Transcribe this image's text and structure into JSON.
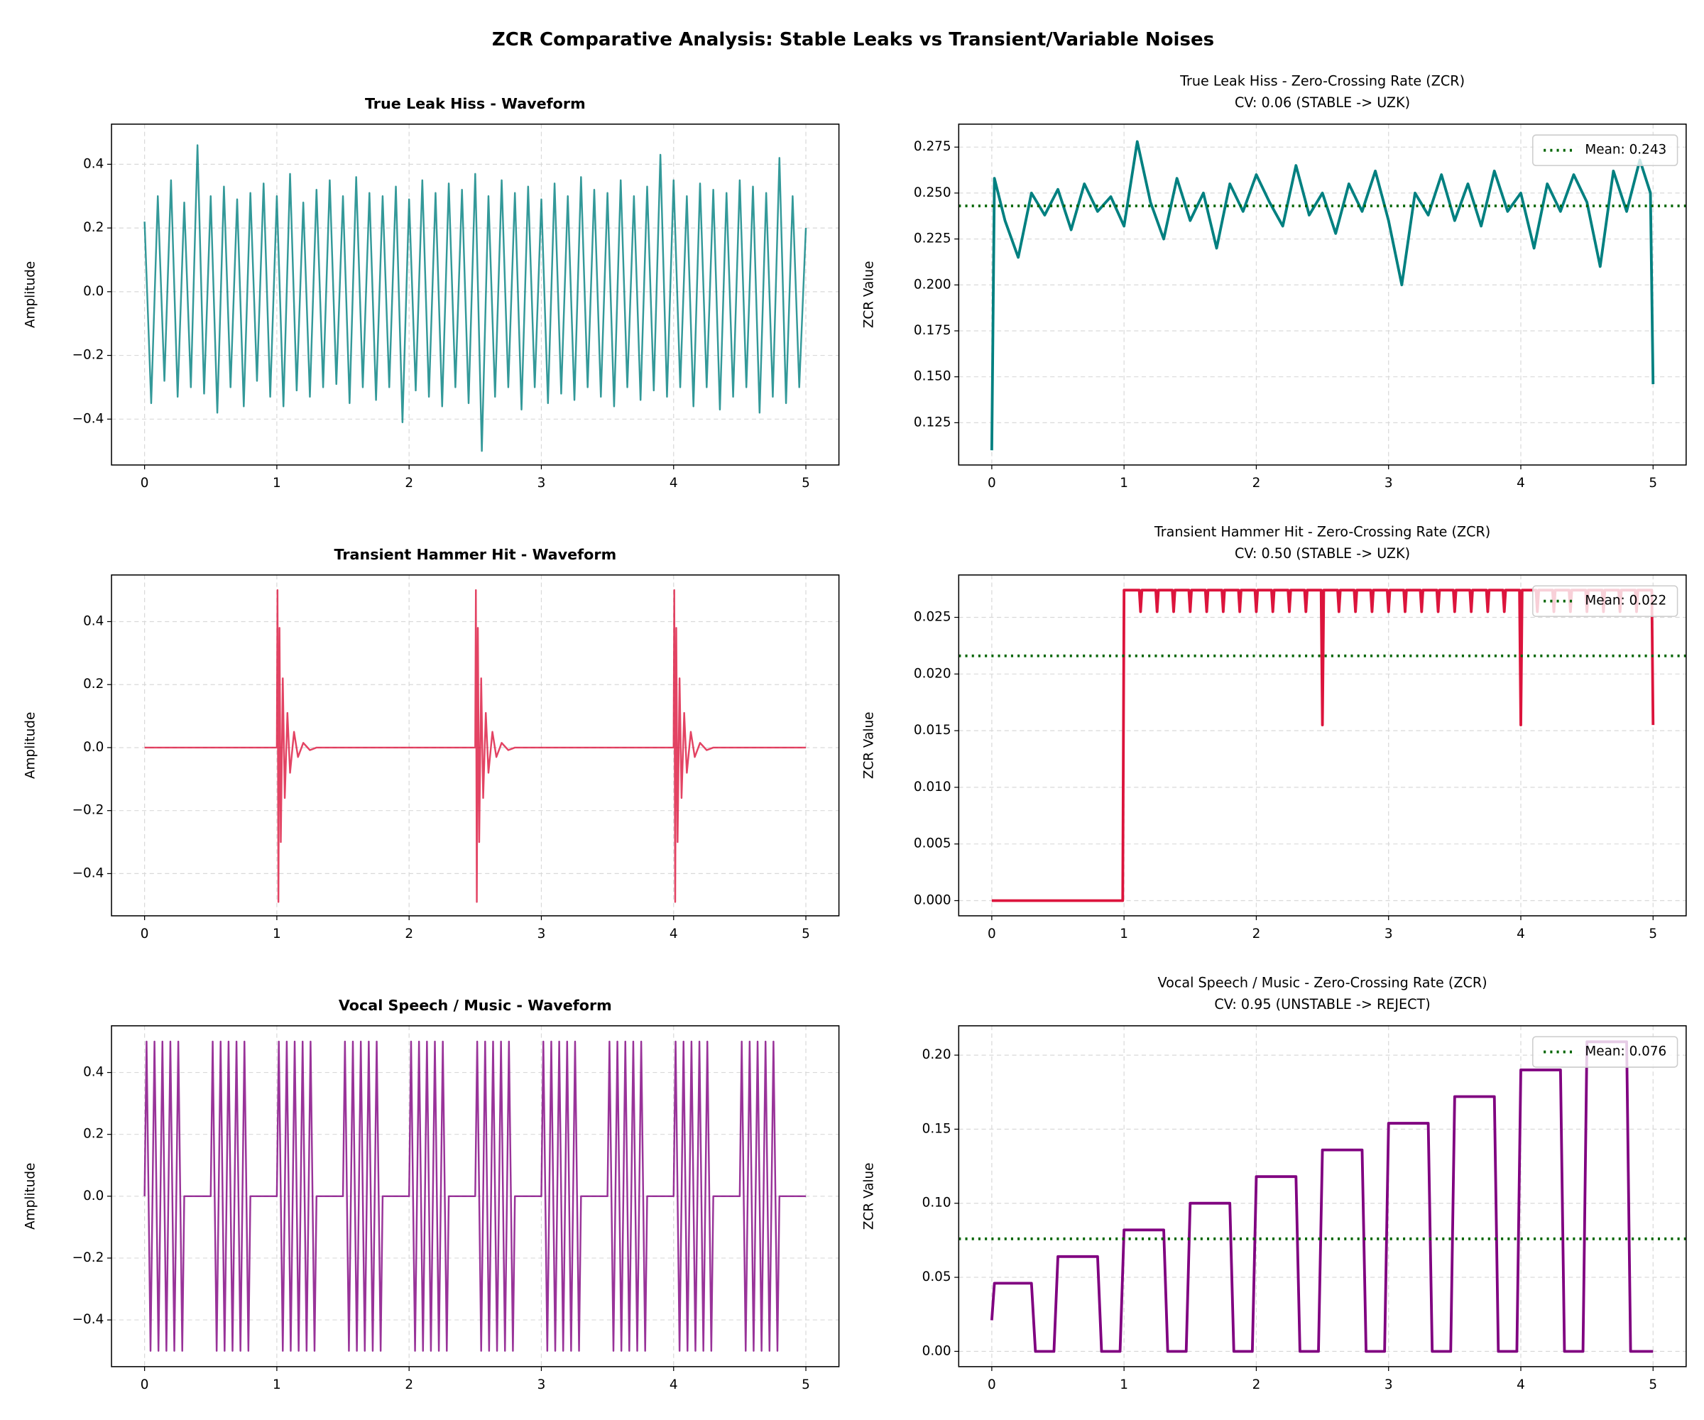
{
  "title": "ZCR Comparative Analysis: Stable Leaks vs Transient/Variable Noises",
  "chart_data": [
    {
      "type": "line",
      "title": "True Leak Hiss - Waveform",
      "ylabel": "Amplitude",
      "color": "#008080",
      "x": [
        0,
        0.05,
        0.1,
        0.15,
        0.2,
        0.25,
        0.3,
        0.35,
        0.4,
        0.45,
        0.5,
        0.55,
        0.6,
        0.65,
        0.7,
        0.75,
        0.8,
        0.85,
        0.9,
        0.95,
        1,
        1.05,
        1.1,
        1.15,
        1.2,
        1.25,
        1.3,
        1.35,
        1.4,
        1.45,
        1.5,
        1.55,
        1.6,
        1.65,
        1.7,
        1.75,
        1.8,
        1.85,
        1.9,
        1.95,
        2,
        2.05,
        2.1,
        2.15,
        2.2,
        2.25,
        2.3,
        2.35,
        2.4,
        2.45,
        2.5,
        2.55,
        2.6,
        2.65,
        2.7,
        2.75,
        2.8,
        2.85,
        2.9,
        2.95,
        3,
        3.05,
        3.1,
        3.15,
        3.2,
        3.25,
        3.3,
        3.35,
        3.4,
        3.45,
        3.5,
        3.55,
        3.6,
        3.65,
        3.7,
        3.75,
        3.8,
        3.85,
        3.9,
        3.95,
        4,
        4.05,
        4.1,
        4.15,
        4.2,
        4.25,
        4.3,
        4.35,
        4.4,
        4.45,
        4.5,
        4.55,
        4.6,
        4.65,
        4.7,
        4.75,
        4.8,
        4.85,
        4.9,
        4.95,
        5
      ],
      "values": [
        0.22,
        -0.35,
        0.3,
        -0.28,
        0.35,
        -0.33,
        0.28,
        -0.3,
        0.46,
        -0.32,
        0.3,
        -0.38,
        0.33,
        -0.3,
        0.29,
        -0.36,
        0.31,
        -0.28,
        0.34,
        -0.33,
        0.3,
        -0.36,
        0.37,
        -0.31,
        0.28,
        -0.33,
        0.32,
        -0.3,
        0.35,
        -0.29,
        0.3,
        -0.35,
        0.36,
        -0.3,
        0.31,
        -0.34,
        0.3,
        -0.3,
        0.33,
        -0.41,
        0.29,
        -0.31,
        0.35,
        -0.33,
        0.31,
        -0.36,
        0.34,
        -0.3,
        0.32,
        -0.35,
        0.37,
        -0.5,
        0.3,
        -0.33,
        0.35,
        -0.3,
        0.31,
        -0.37,
        0.33,
        -0.3,
        0.29,
        -0.35,
        0.34,
        -0.32,
        0.3,
        -0.34,
        0.36,
        -0.3,
        0.32,
        -0.33,
        0.31,
        -0.36,
        0.35,
        -0.3,
        0.3,
        -0.34,
        0.33,
        -0.31,
        0.43,
        -0.33,
        0.35,
        -0.3,
        0.3,
        -0.36,
        0.34,
        -0.3,
        0.32,
        -0.37,
        0.31,
        -0.33,
        0.35,
        -0.3,
        0.33,
        -0.38,
        0.31,
        -0.33,
        0.42,
        -0.35,
        0.3,
        -0.3,
        0.2
      ],
      "xlim": [
        -0.25,
        5.25
      ],
      "xticks": [
        0,
        1,
        2,
        3,
        4,
        5
      ],
      "ylim": [
        -0.544,
        0.526
      ],
      "yticks": [
        {
          "value": -0.4,
          "label": "−0.4"
        },
        {
          "value": -0.2,
          "label": "−0.2"
        },
        {
          "value": 0,
          "label": "0.0"
        },
        0.2,
        0.4
      ],
      "grid": true
    },
    {
      "type": "line",
      "title": "True Leak Hiss - Zero-Crossing Rate (ZCR)",
      "subtitle": "CV: 0.06 (STABLE -> UZK)",
      "ylabel": "ZCR Value",
      "color": "#008080",
      "x": [
        0,
        0.02,
        0.1,
        0.2,
        0.3,
        0.4,
        0.5,
        0.6,
        0.7,
        0.8,
        0.9,
        1,
        1.1,
        1.2,
        1.3,
        1.4,
        1.5,
        1.6,
        1.7,
        1.8,
        1.9,
        2,
        2.1,
        2.2,
        2.3,
        2.4,
        2.5,
        2.6,
        2.7,
        2.8,
        2.9,
        3,
        3.1,
        3.2,
        3.3,
        3.4,
        3.5,
        3.6,
        3.7,
        3.8,
        3.9,
        4,
        4.1,
        4.2,
        4.3,
        4.4,
        4.5,
        4.6,
        4.7,
        4.8,
        4.9,
        4.98,
        5
      ],
      "values": [
        0.11,
        0.258,
        0.235,
        0.215,
        0.25,
        0.238,
        0.252,
        0.23,
        0.255,
        0.24,
        0.248,
        0.232,
        0.278,
        0.245,
        0.225,
        0.258,
        0.235,
        0.25,
        0.22,
        0.255,
        0.24,
        0.26,
        0.245,
        0.232,
        0.265,
        0.238,
        0.25,
        0.228,
        0.255,
        0.24,
        0.262,
        0.235,
        0.2,
        0.25,
        0.238,
        0.26,
        0.235,
        0.255,
        0.232,
        0.262,
        0.24,
        0.25,
        0.22,
        0.255,
        0.24,
        0.26,
        0.245,
        0.21,
        0.262,
        0.24,
        0.268,
        0.25,
        0.146
      ],
      "xlim": [
        -0.25,
        5.25
      ],
      "xticks": [
        0,
        1,
        2,
        3,
        4,
        5
      ],
      "ylim": [
        0.102,
        0.2875
      ],
      "yticks": [
        0.125,
        {
          "value": 0.15,
          "label": "0.150"
        },
        0.175,
        {
          "value": 0.2,
          "label": "0.200"
        },
        0.225,
        {
          "value": 0.25,
          "label": "0.250"
        },
        0.275
      ],
      "grid": true,
      "mean_line": {
        "value": 0.243,
        "label": "Mean: 0.243",
        "color": "#006400"
      },
      "legend": "upper right"
    },
    {
      "type": "line",
      "title": "Transient Hammer Hit - Waveform",
      "ylabel": "Amplitude",
      "color": "#dc143c",
      "x": [
        0,
        1,
        1.005,
        1.012,
        1.02,
        1.03,
        1.045,
        1.06,
        1.08,
        1.1,
        1.13,
        1.16,
        1.2,
        1.25,
        1.3,
        2.5,
        2.505,
        2.512,
        2.52,
        2.53,
        2.545,
        2.56,
        2.58,
        2.6,
        2.63,
        2.66,
        2.7,
        2.75,
        2.8,
        4,
        4.005,
        4.012,
        4.02,
        4.03,
        4.045,
        4.06,
        4.08,
        4.1,
        4.13,
        4.16,
        4.2,
        4.25,
        4.3,
        5
      ],
      "values": [
        0,
        0,
        0.5,
        -0.49,
        0.38,
        -0.3,
        0.22,
        -0.16,
        0.11,
        -0.08,
        0.05,
        -0.03,
        0.015,
        -0.008,
        0,
        0,
        0.5,
        -0.49,
        0.38,
        -0.3,
        0.22,
        -0.16,
        0.11,
        -0.08,
        0.05,
        -0.03,
        0.015,
        -0.008,
        0,
        0,
        0.5,
        -0.49,
        0.38,
        -0.3,
        0.22,
        -0.16,
        0.11,
        -0.08,
        0.05,
        -0.03,
        0.015,
        -0.008,
        0,
        0
      ],
      "xlim": [
        -0.25,
        5.25
      ],
      "xticks": [
        0,
        1,
        2,
        3,
        4,
        5
      ],
      "ylim": [
        -0.534,
        0.548
      ],
      "yticks": [
        {
          "value": -0.4,
          "label": "−0.4"
        },
        {
          "value": -0.2,
          "label": "−0.2"
        },
        {
          "value": 0,
          "label": "0.0"
        },
        0.2,
        0.4
      ],
      "grid": true
    },
    {
      "type": "line",
      "title": "Transient Hammer Hit - Zero-Crossing Rate (ZCR)",
      "subtitle": "CV: 0.50 (STABLE -> UZK)",
      "ylabel": "ZCR Value",
      "color": "#dc143c",
      "x": [
        0,
        0.99,
        1,
        1.115,
        1.125,
        1.135,
        1.24,
        1.25,
        1.26,
        1.365,
        1.375,
        1.385,
        1.49,
        1.5,
        1.51,
        1.615,
        1.625,
        1.635,
        1.74,
        1.75,
        1.76,
        1.865,
        1.875,
        1.885,
        1.99,
        2,
        2.01,
        2.115,
        2.125,
        2.135,
        2.24,
        2.25,
        2.26,
        2.365,
        2.375,
        2.385,
        2.49,
        2.5,
        2.51,
        2.615,
        2.625,
        2.635,
        2.74,
        2.75,
        2.76,
        2.865,
        2.875,
        2.885,
        2.99,
        3,
        3.01,
        3.115,
        3.125,
        3.135,
        3.24,
        3.25,
        3.26,
        3.365,
        3.375,
        3.385,
        3.49,
        3.5,
        3.51,
        3.615,
        3.625,
        3.635,
        3.74,
        3.75,
        3.76,
        3.865,
        3.875,
        3.885,
        3.99,
        4,
        4.01,
        4.115,
        4.125,
        4.135,
        4.24,
        4.25,
        4.26,
        4.365,
        4.375,
        4.385,
        4.49,
        4.5,
        4.51,
        4.615,
        4.625,
        4.635,
        4.74,
        4.75,
        4.76,
        4.865,
        4.875,
        4.885,
        4.99,
        5
      ],
      "values": [
        0,
        0,
        0.0274,
        0.0274,
        0.0255,
        0.0274,
        0.0274,
        0.0255,
        0.0274,
        0.0274,
        0.0255,
        0.0274,
        0.0274,
        0.0255,
        0.0274,
        0.0274,
        0.0255,
        0.0274,
        0.0274,
        0.0255,
        0.0274,
        0.0274,
        0.0255,
        0.0274,
        0.0274,
        0.0255,
        0.0274,
        0.0274,
        0.0255,
        0.0274,
        0.0274,
        0.0255,
        0.0274,
        0.0274,
        0.0255,
        0.0274,
        0.0274,
        0.0155,
        0.0274,
        0.0274,
        0.0255,
        0.0274,
        0.0274,
        0.0255,
        0.0274,
        0.0274,
        0.0255,
        0.0274,
        0.0274,
        0.0255,
        0.0274,
        0.0274,
        0.0255,
        0.0274,
        0.0274,
        0.0255,
        0.0274,
        0.0274,
        0.0255,
        0.0274,
        0.0274,
        0.0255,
        0.0274,
        0.0274,
        0.0255,
        0.0274,
        0.0274,
        0.0255,
        0.0274,
        0.0274,
        0.0255,
        0.0274,
        0.0274,
        0.0155,
        0.0274,
        0.0274,
        0.0255,
        0.0274,
        0.0274,
        0.0255,
        0.0274,
        0.0274,
        0.0255,
        0.0274,
        0.0274,
        0.0255,
        0.0274,
        0.0274,
        0.0255,
        0.0274,
        0.0274,
        0.0255,
        0.0274,
        0.0274,
        0.0255,
        0.0274,
        0.0274,
        0.0155
      ],
      "xlim": [
        -0.25,
        5.25
      ],
      "xticks": [
        0,
        1,
        2,
        3,
        4,
        5
      ],
      "ylim": [
        -0.00134,
        0.02874
      ],
      "yticks": [
        {
          "value": 0,
          "label": "0.000"
        },
        0.005,
        {
          "value": 0.01,
          "label": "0.010"
        },
        0.015,
        {
          "value": 0.02,
          "label": "0.020"
        },
        0.025
      ],
      "grid": true,
      "mean_line": {
        "value": 0.0216,
        "label": "Mean: 0.022",
        "color": "#006400"
      },
      "legend": "upper right"
    },
    {
      "type": "line",
      "title": "Vocal Speech / Music - Waveform",
      "ylabel": "Amplitude",
      "color": "#800080",
      "x": [
        0,
        0.015,
        0.045,
        0.075,
        0.105,
        0.135,
        0.165,
        0.195,
        0.225,
        0.255,
        0.285,
        0.3,
        0.5,
        0.515,
        0.545,
        0.575,
        0.605,
        0.635,
        0.665,
        0.695,
        0.725,
        0.755,
        0.785,
        0.8,
        1,
        1.015,
        1.045,
        1.075,
        1.105,
        1.135,
        1.165,
        1.195,
        1.225,
        1.255,
        1.285,
        1.3,
        1.5,
        1.515,
        1.545,
        1.575,
        1.605,
        1.635,
        1.665,
        1.695,
        1.725,
        1.755,
        1.785,
        1.8,
        2,
        2.015,
        2.045,
        2.075,
        2.105,
        2.135,
        2.165,
        2.195,
        2.225,
        2.255,
        2.285,
        2.3,
        2.5,
        2.515,
        2.545,
        2.575,
        2.605,
        2.635,
        2.665,
        2.695,
        2.725,
        2.755,
        2.785,
        2.8,
        3,
        3.015,
        3.045,
        3.075,
        3.105,
        3.135,
        3.165,
        3.195,
        3.225,
        3.255,
        3.285,
        3.3,
        3.5,
        3.515,
        3.545,
        3.575,
        3.605,
        3.635,
        3.665,
        3.695,
        3.725,
        3.755,
        3.785,
        3.8,
        4,
        4.015,
        4.045,
        4.075,
        4.105,
        4.135,
        4.165,
        4.195,
        4.225,
        4.255,
        4.285,
        4.3,
        4.5,
        4.515,
        4.545,
        4.575,
        4.605,
        4.635,
        4.665,
        4.695,
        4.725,
        4.755,
        4.785,
        4.8,
        5
      ],
      "values": [
        0,
        0.5,
        -0.5,
        0.5,
        -0.5,
        0.5,
        -0.5,
        0.5,
        -0.5,
        0.5,
        -0.5,
        0,
        0,
        0.5,
        -0.5,
        0.5,
        -0.5,
        0.5,
        -0.5,
        0.5,
        -0.5,
        0.5,
        -0.5,
        0,
        0,
        0.5,
        -0.5,
        0.5,
        -0.5,
        0.5,
        -0.5,
        0.5,
        -0.5,
        0.5,
        -0.5,
        0,
        0,
        0.5,
        -0.5,
        0.5,
        -0.5,
        0.5,
        -0.5,
        0.5,
        -0.5,
        0.5,
        -0.5,
        0,
        0,
        0.5,
        -0.5,
        0.5,
        -0.5,
        0.5,
        -0.5,
        0.5,
        -0.5,
        0.5,
        -0.5,
        0,
        0,
        0.5,
        -0.5,
        0.5,
        -0.5,
        0.5,
        -0.5,
        0.5,
        -0.5,
        0.5,
        -0.5,
        0,
        0,
        0.5,
        -0.5,
        0.5,
        -0.5,
        0.5,
        -0.5,
        0.5,
        -0.5,
        0.5,
        -0.5,
        0,
        0,
        0.5,
        -0.5,
        0.5,
        -0.5,
        0.5,
        -0.5,
        0.5,
        -0.5,
        0.5,
        -0.5,
        0,
        0,
        0.5,
        -0.5,
        0.5,
        -0.5,
        0.5,
        -0.5,
        0.5,
        -0.5,
        0.5,
        -0.5,
        0,
        0,
        0.5,
        -0.5,
        0.5,
        -0.5,
        0.5,
        -0.5,
        0.5,
        -0.5,
        0.5,
        -0.5,
        0,
        0
      ],
      "xlim": [
        -0.25,
        5.25
      ],
      "xticks": [
        0,
        1,
        2,
        3,
        4,
        5
      ],
      "ylim": [
        -0.551,
        0.551
      ],
      "yticks": [
        {
          "value": -0.4,
          "label": "−0.4"
        },
        {
          "value": -0.2,
          "label": "−0.2"
        },
        {
          "value": 0,
          "label": "0.0"
        },
        0.2,
        0.4
      ],
      "grid": true
    },
    {
      "type": "line",
      "title": "Vocal Speech / Music - Zero-Crossing Rate (ZCR)",
      "subtitle": "CV: 0.95 (UNSTABLE -> REJECT)",
      "ylabel": "ZCR Value",
      "color": "#800080",
      "x": [
        0,
        0.02,
        0.3,
        0.33,
        0.47,
        0.5,
        0.8,
        0.83,
        0.97,
        1,
        1.3,
        1.33,
        1.47,
        1.5,
        1.8,
        1.83,
        1.97,
        2,
        2.3,
        2.33,
        2.47,
        2.5,
        2.8,
        2.83,
        2.97,
        3,
        3.3,
        3.33,
        3.47,
        3.5,
        3.8,
        3.83,
        3.97,
        4,
        4.3,
        4.33,
        4.47,
        4.5,
        4.8,
        4.83,
        5
      ],
      "values": [
        0.021,
        0.046,
        0.046,
        0,
        0,
        0.064,
        0.064,
        0,
        0,
        0.082,
        0.082,
        0,
        0,
        0.1,
        0.1,
        0,
        0,
        0.118,
        0.118,
        0,
        0,
        0.136,
        0.136,
        0,
        0,
        0.154,
        0.154,
        0,
        0,
        0.172,
        0.172,
        0,
        0,
        0.19,
        0.19,
        0,
        0,
        0.209,
        0.209,
        0,
        0
      ],
      "xlim": [
        -0.25,
        5.25
      ],
      "xticks": [
        0,
        1,
        2,
        3,
        4,
        5
      ],
      "ylim": [
        -0.0103,
        0.2198
      ],
      "yticks": [
        {
          "value": 0,
          "label": "0.00"
        },
        0.05,
        {
          "value": 0.1,
          "label": "0.10"
        },
        0.15,
        {
          "value": 0.2,
          "label": "0.20"
        }
      ],
      "grid": true,
      "mean_line": {
        "value": 0.076,
        "label": "Mean: 0.076",
        "color": "#006400"
      },
      "legend": "upper right"
    }
  ]
}
